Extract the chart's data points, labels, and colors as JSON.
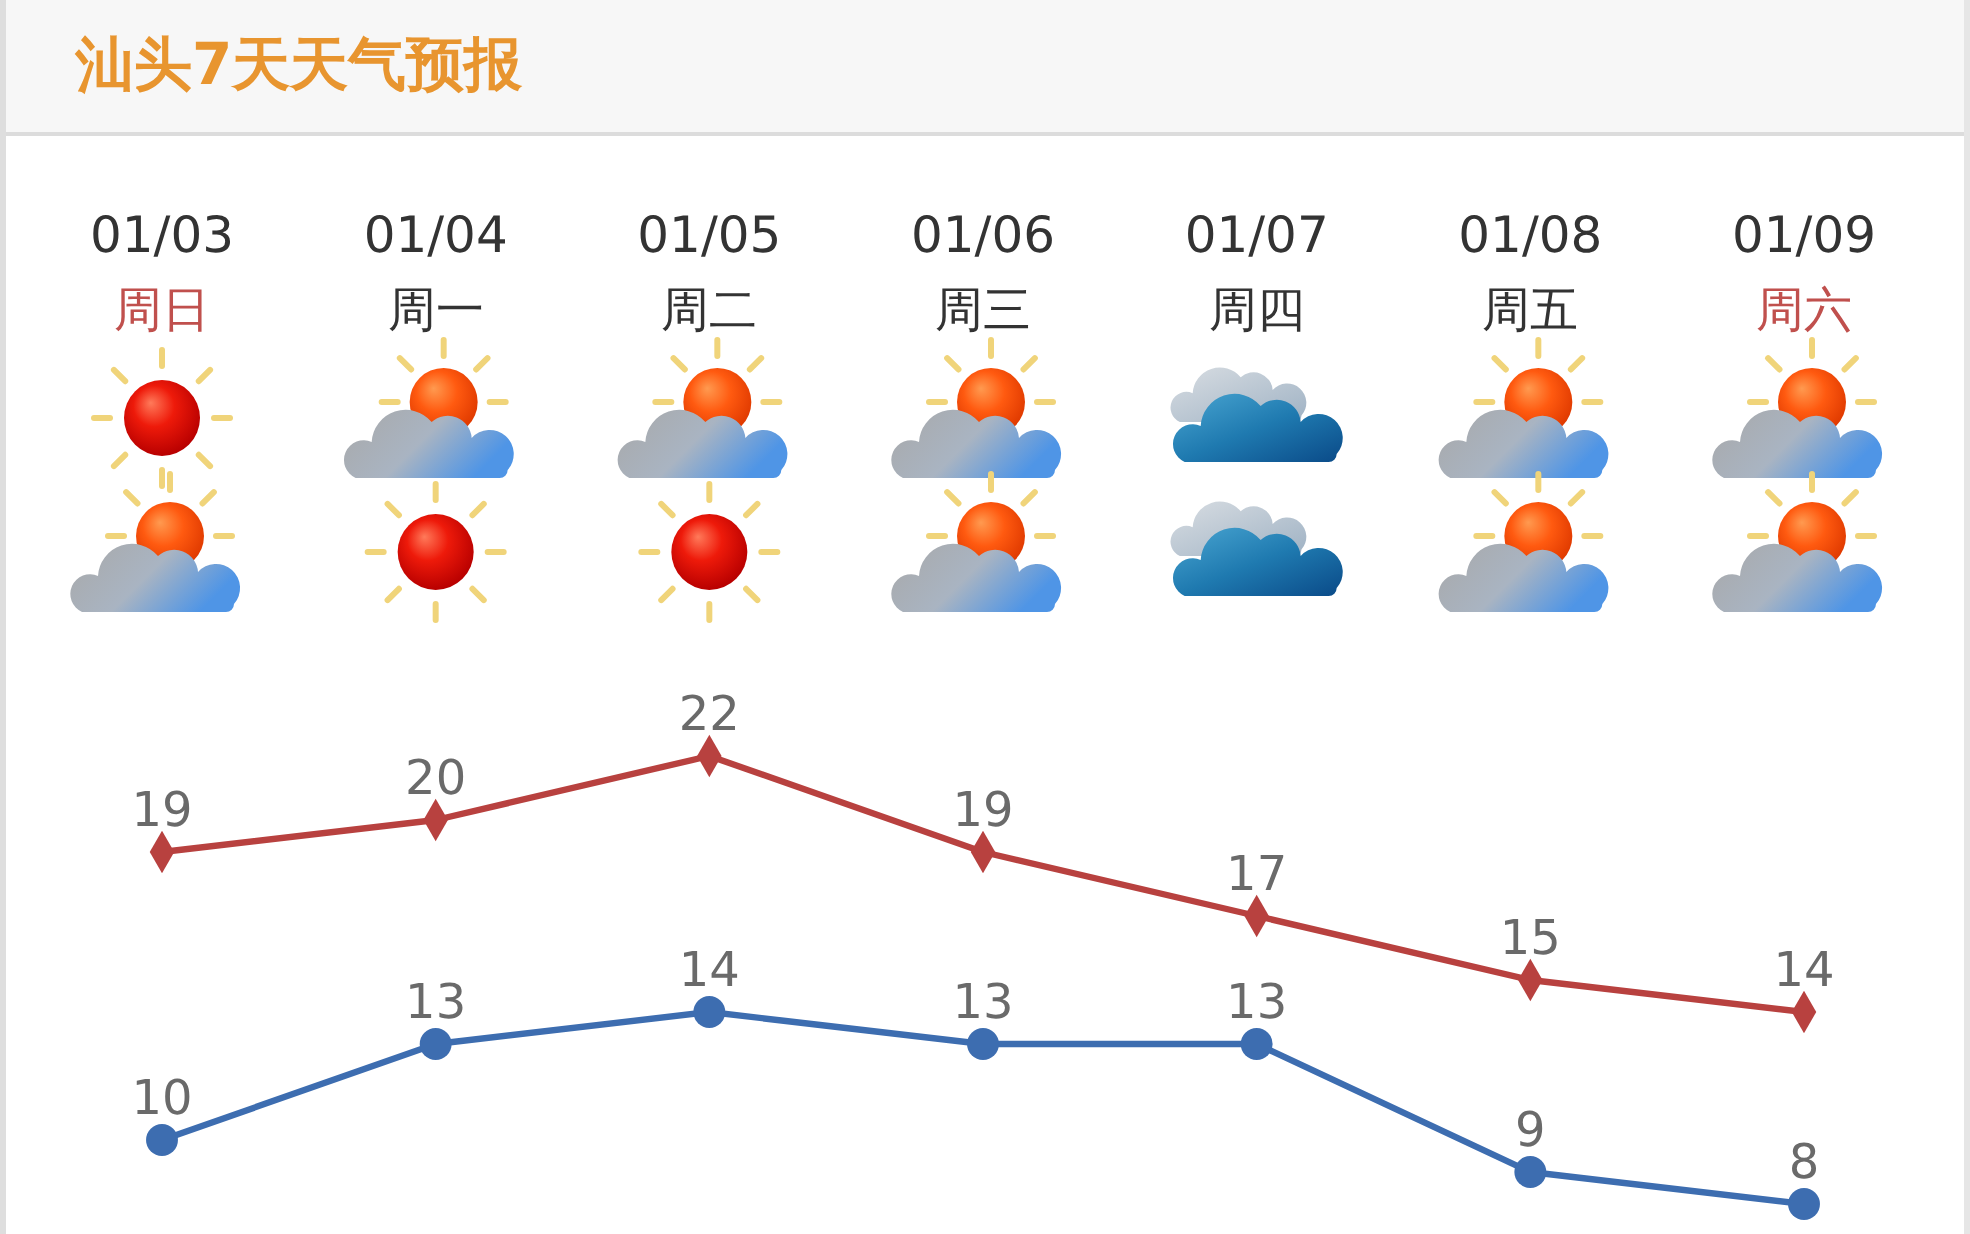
{
  "chart_data": {
    "type": "line",
    "title": "汕头7天天气预报",
    "categories": [
      "01/03\n周日",
      "01/04\n周一",
      "01/05\n周二",
      "01/06\n周三",
      "01/07\n周四",
      "01/08\n周五",
      "01/09\n周六"
    ],
    "series": [
      {
        "color": "#b8413f",
        "marker": "diamond",
        "values": [
          19,
          20,
          22,
          19,
          17,
          15,
          14
        ]
      },
      {
        "color": "#3d6db0",
        "marker": "circle",
        "values": [
          10,
          13,
          14,
          13,
          13,
          9,
          8
        ]
      }
    ],
    "tick_labels": "x",
    "data_labels": true
  }
}
